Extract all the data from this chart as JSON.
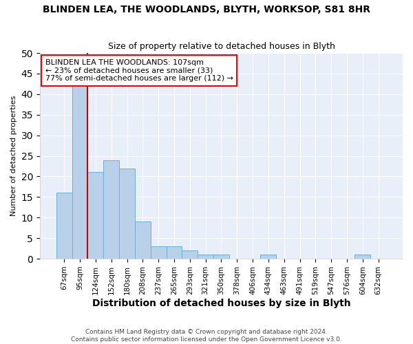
{
  "title": "BLINDEN LEA, THE WOODLANDS, BLYTH, WORKSOP, S81 8HR",
  "subtitle": "Size of property relative to detached houses in Blyth",
  "xlabel": "Distribution of detached houses by size in Blyth",
  "ylabel": "Number of detached properties",
  "categories": [
    "67sqm",
    "95sqm",
    "124sqm",
    "152sqm",
    "180sqm",
    "208sqm",
    "237sqm",
    "265sqm",
    "293sqm",
    "321sqm",
    "350sqm",
    "378sqm",
    "406sqm",
    "434sqm",
    "463sqm",
    "491sqm",
    "519sqm",
    "547sqm",
    "576sqm",
    "604sqm",
    "632sqm"
  ],
  "values": [
    16,
    42,
    21,
    24,
    22,
    9,
    3,
    3,
    2,
    1,
    1,
    0,
    0,
    1,
    0,
    0,
    0,
    0,
    0,
    1,
    0
  ],
  "bar_color": "#b8d0e8",
  "bar_edge_color": "#6baed6",
  "vline_color": "#cc0000",
  "vline_x": 1.5,
  "annotation_text": "BLINDEN LEA THE WOODLANDS: 107sqm\n← 23% of detached houses are smaller (33)\n77% of semi-detached houses are larger (112) →",
  "annotation_box_color": "white",
  "annotation_box_edge_color": "red",
  "footnote": "Contains HM Land Registry data © Crown copyright and database right 2024.\nContains public sector information licensed under the Open Government Licence v3.0.",
  "ylim": [
    0,
    50
  ],
  "yticks": [
    0,
    5,
    10,
    15,
    20,
    25,
    30,
    35,
    40,
    45,
    50
  ],
  "background_color": "#e8eff8",
  "grid_color": "white",
  "title_fontsize": 10,
  "subtitle_fontsize": 9,
  "ylabel_fontsize": 8,
  "xlabel_fontsize": 10
}
